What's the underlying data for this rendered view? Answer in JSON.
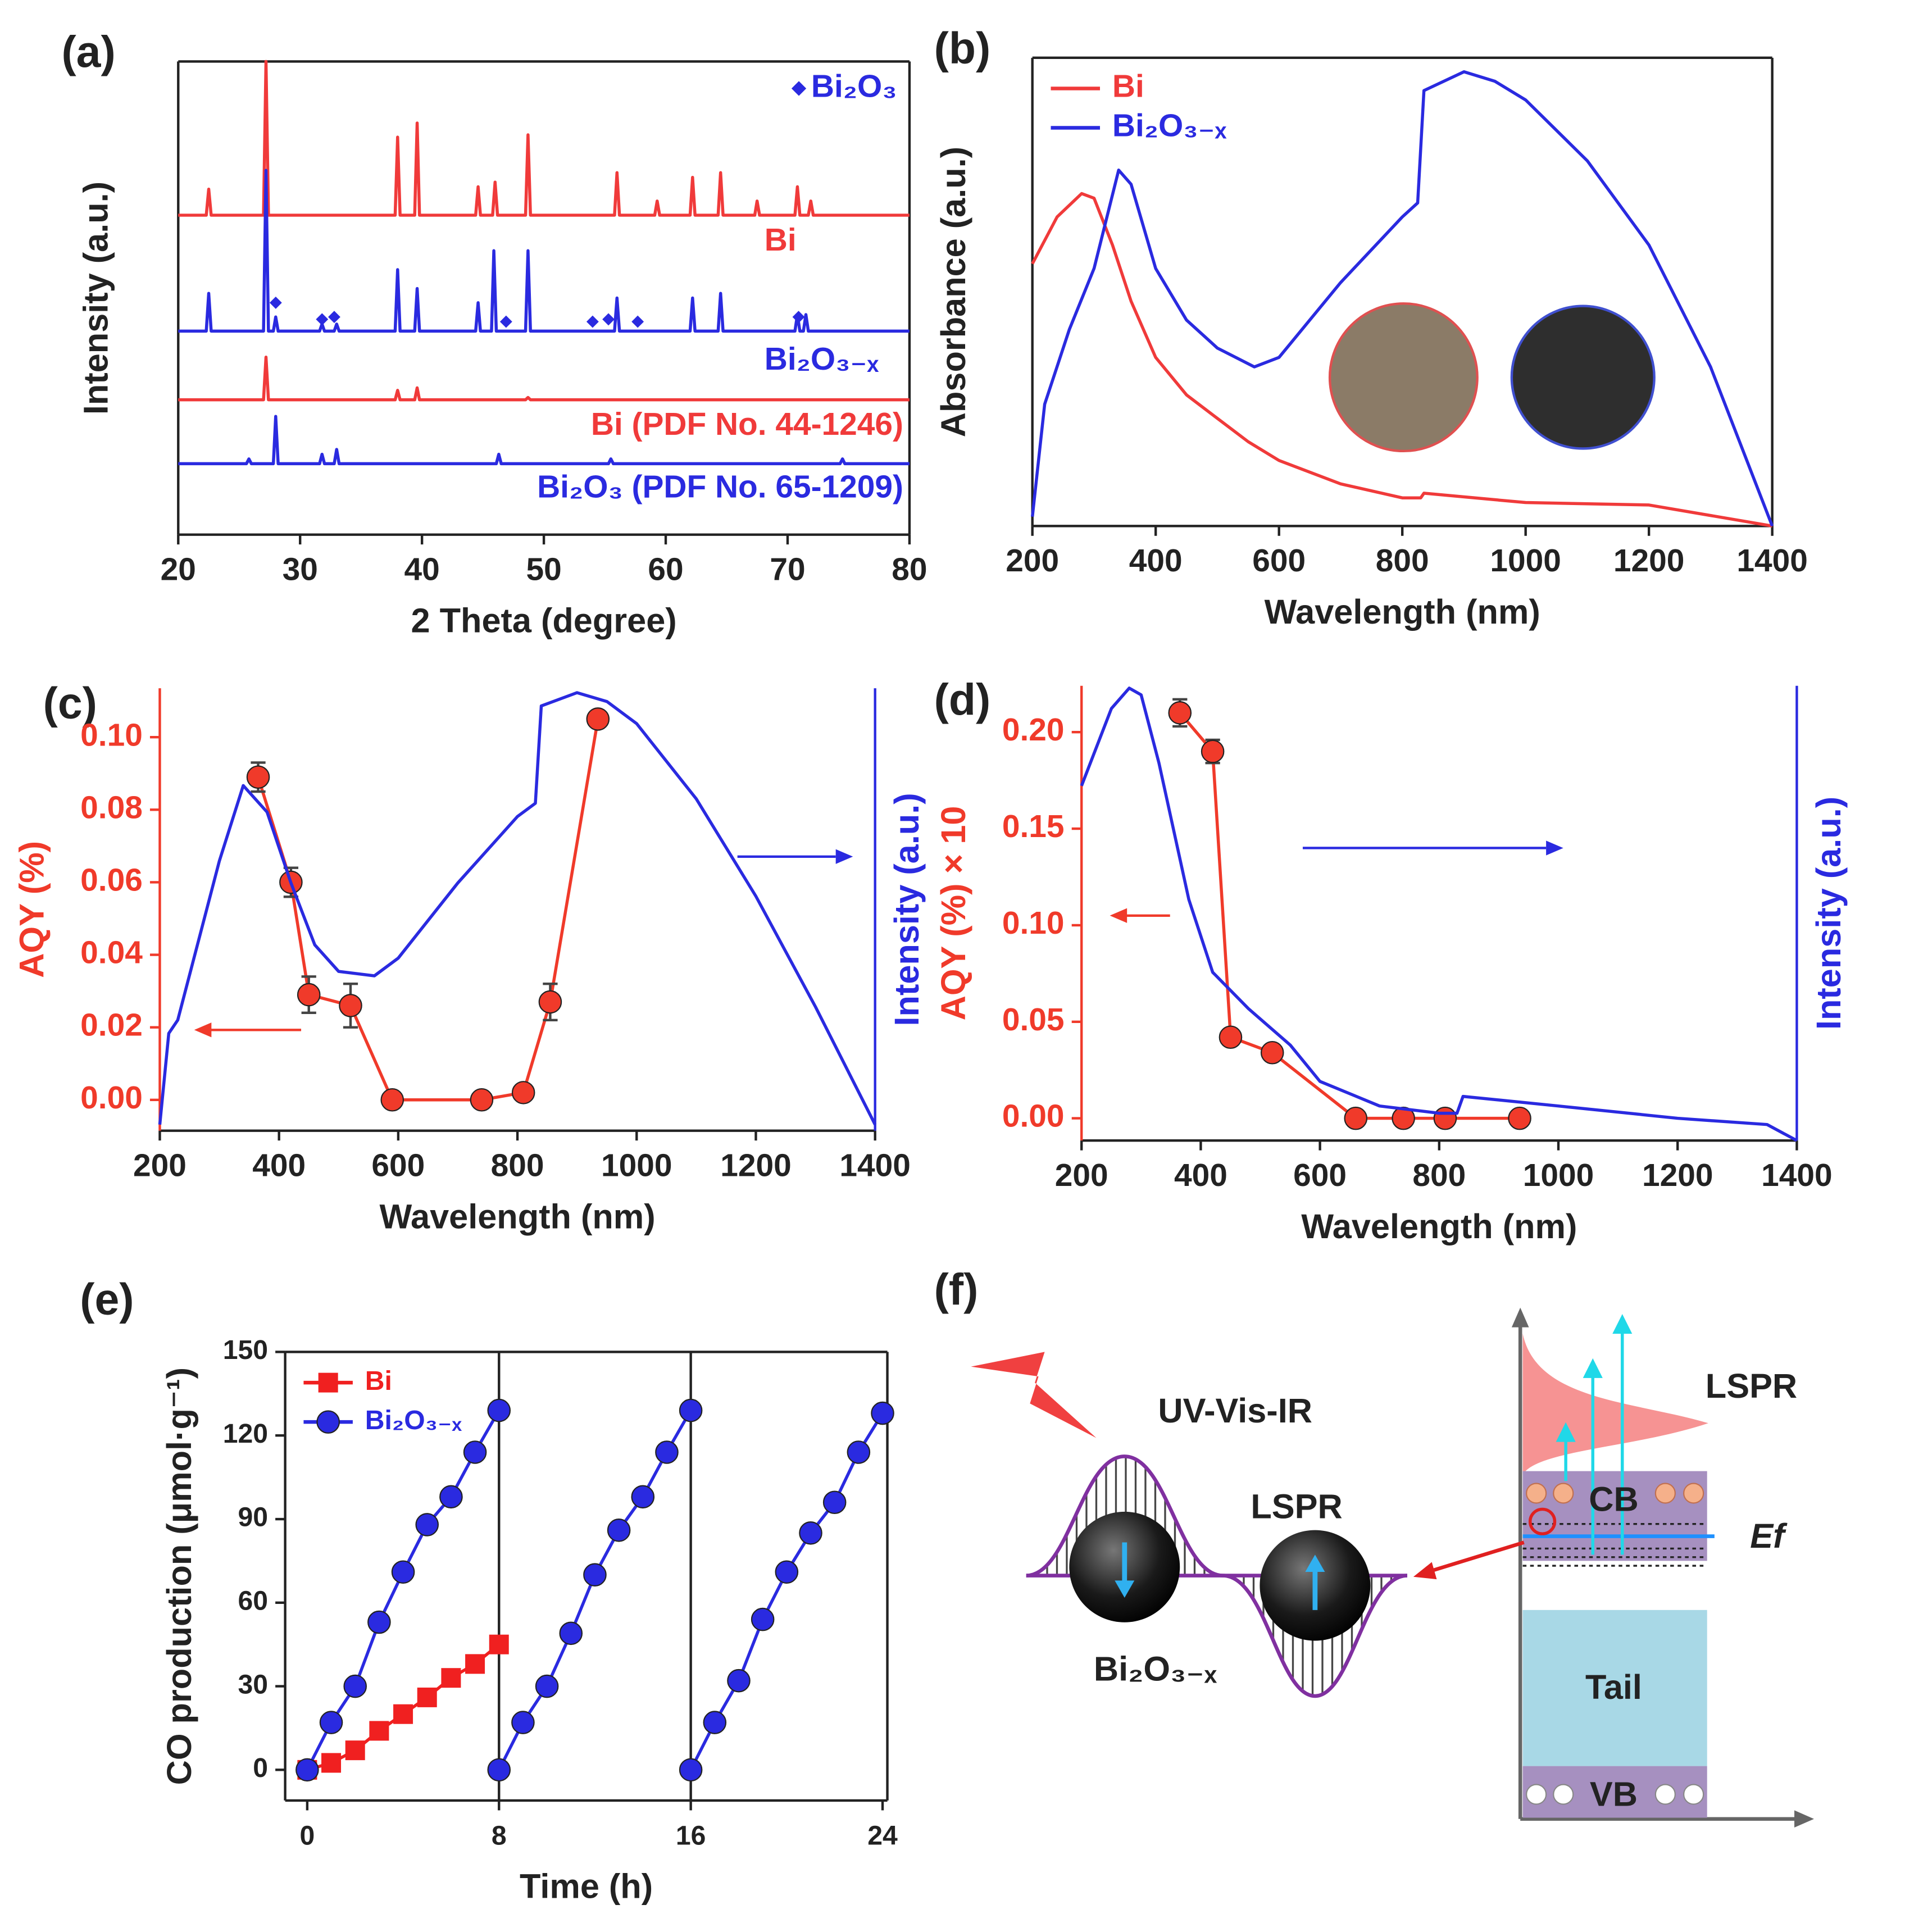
{
  "chart_data": [
    {
      "type": "line",
      "label": "(a)",
      "xlabel": "2 Theta (degree)",
      "ylabel": "Intensity (a.u.)",
      "xlim": [
        20,
        80
      ],
      "xticks": [
        20,
        30,
        40,
        50,
        60,
        70,
        80
      ],
      "ylim": [
        0,
        100
      ],
      "series": [
        {
          "name": "Bi",
          "color": "#f03a3a",
          "x": [
            20,
            22.3,
            22.5,
            22.7,
            27,
            27.2,
            27.4,
            37.8,
            38,
            38.2,
            39.4,
            39.6,
            39.8,
            44.4,
            44.6,
            44.8,
            45.8,
            46,
            46.2,
            48.5,
            48.7,
            48.9,
            55.8,
            56,
            56.2,
            59.1,
            59.3,
            59.5,
            62,
            62.2,
            62.4,
            64.3,
            64.5,
            64.7,
            67.3,
            67.5,
            67.7,
            70.6,
            70.8,
            71,
            71.7,
            71.9,
            72.1,
            80
          ],
          "values": [
            67.5,
            67.5,
            73,
            67.5,
            67.5,
            100,
            67.5,
            67.5,
            84,
            67.5,
            67.5,
            87,
            67.5,
            67.5,
            73.5,
            67.5,
            67.5,
            74.5,
            67.5,
            67.5,
            84.5,
            67.5,
            67.5,
            76.5,
            67.5,
            67.5,
            70.5,
            67.5,
            67.5,
            75.5,
            67.5,
            67.5,
            76.5,
            67.5,
            67.5,
            70.5,
            67.5,
            67.5,
            73.5,
            67.5,
            67.5,
            70.5,
            67.5,
            67.5
          ]
        },
        {
          "name": "Bi₂O₃₋ₓ",
          "color": "#2a2ae0",
          "x": [
            20,
            22.3,
            22.5,
            22.7,
            27,
            27.2,
            27.4,
            27.8,
            28,
            28.2,
            31.6,
            31.8,
            32,
            32.8,
            33,
            33.2,
            37.8,
            38,
            38.2,
            39.4,
            39.6,
            39.8,
            44.4,
            44.6,
            44.8,
            45.7,
            45.9,
            46.1,
            48.5,
            48.7,
            48.9,
            55.8,
            56,
            56.2,
            62,
            62.2,
            62.4,
            64.3,
            64.5,
            64.7,
            70.6,
            70.8,
            71,
            71.3,
            71.5,
            71.7,
            80
          ],
          "values": [
            43,
            43,
            51,
            43,
            43,
            77,
            43,
            43,
            46,
            43,
            43,
            44.5,
            43,
            43,
            44.5,
            43,
            43,
            56,
            43,
            43,
            52,
            43,
            43,
            49,
            43,
            43,
            60,
            43,
            43,
            60,
            43,
            43,
            50,
            43,
            43,
            50,
            43,
            43,
            51,
            43,
            43,
            46.5,
            43,
            43,
            46.5,
            43,
            43
          ]
        },
        {
          "name": "Bi (PDF No. 44-1246)",
          "color": "#f03a3a",
          "x": [
            20,
            27,
            27.2,
            27.4,
            37.8,
            38,
            38.2,
            39.4,
            39.6,
            39.8,
            48.5,
            48.7,
            48.9,
            80
          ],
          "values": [
            28.5,
            28.5,
            37.5,
            28.5,
            28.5,
            30.5,
            28.5,
            28.5,
            31,
            28.5,
            28.5,
            29,
            28.5,
            28.5
          ]
        },
        {
          "name": "Bi₂O₃ (PDF No. 65-1209)",
          "color": "#2a2ae0",
          "x": [
            20,
            25.6,
            25.8,
            26,
            27.8,
            28,
            28.2,
            31.6,
            31.8,
            32,
            32.8,
            33,
            33.2,
            46.1,
            46.3,
            46.5,
            55.3,
            55.5,
            55.7,
            74.3,
            74.5,
            74.7,
            80
          ],
          "values": [
            15,
            15,
            16,
            15,
            15,
            25,
            15,
            15,
            17,
            15,
            15,
            18,
            15,
            15,
            17,
            15,
            15,
            16,
            15,
            15,
            16,
            15,
            15
          ]
        },
        {
          "name": "Bi₂O₃",
          "type": "scatter",
          "marker": "diamond",
          "color": "#2a2ae0",
          "x": [
            28,
            31.8,
            32.8,
            46.9,
            54,
            55.3,
            57.7,
            70.9
          ],
          "values": [
            49,
            45.5,
            46,
            45,
            45,
            45.5,
            45,
            46
          ]
        }
      ]
    },
    {
      "type": "line",
      "label": "(b)",
      "xlabel": "Wavelength (nm)",
      "ylabel": "Absorbance (a.u.)",
      "xlim": [
        200,
        1400
      ],
      "xticks": [
        200,
        400,
        600,
        800,
        1000,
        1200,
        1400
      ],
      "ylim": [
        0,
        100
      ],
      "legend": "upper left",
      "series": [
        {
          "name": "Bi",
          "color": "#f03a3a",
          "x": [
            200,
            240,
            280,
            300,
            330,
            360,
            400,
            450,
            500,
            550,
            600,
            700,
            800,
            830,
            835,
            1000,
            1200,
            1400
          ],
          "values": [
            56,
            66,
            71,
            70,
            60,
            48,
            36,
            28,
            23,
            18,
            14,
            9,
            6,
            6,
            7,
            5,
            4.5,
            0
          ]
        },
        {
          "name": "Bi₂O₃₋ₓ",
          "color": "#2a2ae0",
          "x": [
            200,
            220,
            260,
            300,
            340,
            360,
            400,
            450,
            500,
            560,
            600,
            700,
            800,
            825,
            835,
            900,
            950,
            1000,
            1100,
            1200,
            1300,
            1400
          ],
          "values": [
            2,
            26,
            42,
            55,
            76,
            73,
            55,
            44,
            38,
            34,
            36,
            52,
            66,
            69,
            93,
            97,
            95,
            91,
            78,
            60,
            34,
            0
          ]
        }
      ]
    },
    {
      "type": "line",
      "label": "(c)",
      "xlabel": "Wavelength (nm)",
      "ylabel": "AQY (%)",
      "y2label": "Intensity (a.u.)",
      "xlim": [
        200,
        1400
      ],
      "xticks": [
        200,
        400,
        600,
        800,
        1000,
        1200,
        1400
      ],
      "ylim": [
        -0.0085,
        0.1135
      ],
      "yticks": [
        {
          "value": 0,
          "label": "0.00"
        },
        {
          "value": 0.02,
          "label": "0.02"
        },
        {
          "value": 0.04,
          "label": "0.04"
        },
        {
          "value": 0.06,
          "label": "0.06"
        },
        {
          "value": 0.08,
          "label": "0.08"
        },
        {
          "value": 0.1,
          "label": "0.10"
        }
      ],
      "y2lim": [
        0,
        100
      ],
      "series": [
        {
          "color": "#f03a2a",
          "marker": "circle",
          "x": [
            365,
            420,
            450,
            520,
            590,
            740,
            810,
            855,
            935
          ],
          "values": [
            0.089,
            0.06,
            0.029,
            0.026,
            0,
            0,
            0.002,
            0.027,
            0.105
          ],
          "errors": [
            0.004,
            0.004,
            0.005,
            0.006,
            0,
            0,
            0,
            0.005,
            0
          ]
        },
        {
          "color": "#2a2ae0",
          "axis": "y2",
          "x": [
            200,
            215,
            230,
            300,
            340,
            380,
            420,
            460,
            500,
            560,
            600,
            700,
            800,
            830,
            840,
            900,
            950,
            1000,
            1100,
            1200,
            1300,
            1400
          ],
          "values": [
            1.4,
            22,
            25,
            61,
            78,
            72,
            56,
            42,
            36,
            35,
            39,
            56,
            71,
            74,
            96,
            99,
            97,
            92,
            75,
            53,
            28,
            1.4
          ]
        }
      ]
    },
    {
      "type": "line",
      "label": "(d)",
      "xlabel": "Wavelength (nm)",
      "ylabel": "AQY (%) × 10",
      "y2label": "Intensity (a.u.)",
      "xlim": [
        200,
        1400
      ],
      "xticks": [
        200,
        400,
        600,
        800,
        1000,
        1200,
        1400
      ],
      "ylim": [
        -0.0115,
        0.224
      ],
      "yticks": [
        {
          "value": 0,
          "label": "0.00"
        },
        {
          "value": 0.05,
          "label": "0.05"
        },
        {
          "value": 0.1,
          "label": "0.10"
        },
        {
          "value": 0.15,
          "label": "0.15"
        },
        {
          "value": 0.2,
          "label": "0.20"
        }
      ],
      "y2lim": [
        0,
        100
      ],
      "series": [
        {
          "color": "#f03a2a",
          "marker": "circle",
          "x": [
            365,
            420,
            450,
            520,
            660,
            740,
            810,
            935
          ],
          "values": [
            0.21,
            0.19,
            0.042,
            0.034,
            0,
            0,
            0,
            0
          ],
          "errors": [
            0.007,
            0.006,
            0,
            0,
            0,
            0,
            0,
            0
          ]
        },
        {
          "color": "#2a2ae0",
          "axis": "y2",
          "x": [
            200,
            250,
            280,
            300,
            330,
            380,
            420,
            480,
            550,
            600,
            700,
            800,
            830,
            840,
            1000,
            1200,
            1350,
            1400
          ],
          "values": [
            78,
            95,
            99.5,
            98,
            83,
            53,
            37,
            29,
            21,
            13,
            7.6,
            6,
            6,
            9.7,
            7.6,
            4.9,
            3.5,
            0
          ]
        }
      ]
    },
    {
      "type": "line",
      "label": "(e)",
      "xlabel": "Time (h)",
      "ylabel": "CO production (μmol·g⁻¹)",
      "xlim": [
        -0.92,
        24.2
      ],
      "xticks": [
        0,
        8,
        16,
        24
      ],
      "ylim": [
        -11,
        150
      ],
      "yticks": [
        0,
        30,
        60,
        90,
        120,
        150
      ],
      "vlines": [
        8,
        16
      ],
      "legend": "upper left",
      "series": [
        {
          "name": "Bi",
          "color": "#f02020",
          "marker": "square",
          "x": [
            0,
            1,
            2,
            3,
            4,
            5,
            6,
            7,
            8
          ],
          "values": [
            0,
            2.5,
            7,
            14,
            20,
            26,
            33,
            38,
            45
          ]
        },
        {
          "name": "Bi₂O₃₋ₓ",
          "color": "#2a2ae0",
          "marker": "circle",
          "x": [
            0,
            1,
            2,
            3,
            4,
            5,
            6,
            7,
            8,
            null,
            8,
            9,
            10,
            11,
            12,
            13,
            14,
            15,
            16,
            null,
            16,
            17,
            18,
            19,
            20,
            21,
            22,
            23,
            24
          ],
          "values": [
            0,
            17,
            30,
            53,
            71,
            88,
            98,
            114,
            129,
            null,
            0,
            17,
            30,
            49,
            70,
            86,
            98,
            114,
            129,
            null,
            0,
            17,
            32,
            54,
            71,
            85,
            96,
            114,
            128
          ]
        }
      ]
    }
  ],
  "diagram": {
    "label": "(f)",
    "labels": [
      "UV-Vis-IR",
      "LSPR",
      "Bi₂O₃₋ₓ",
      "LSPR",
      "CB",
      "Ef",
      "Tail",
      "VB"
    ]
  }
}
